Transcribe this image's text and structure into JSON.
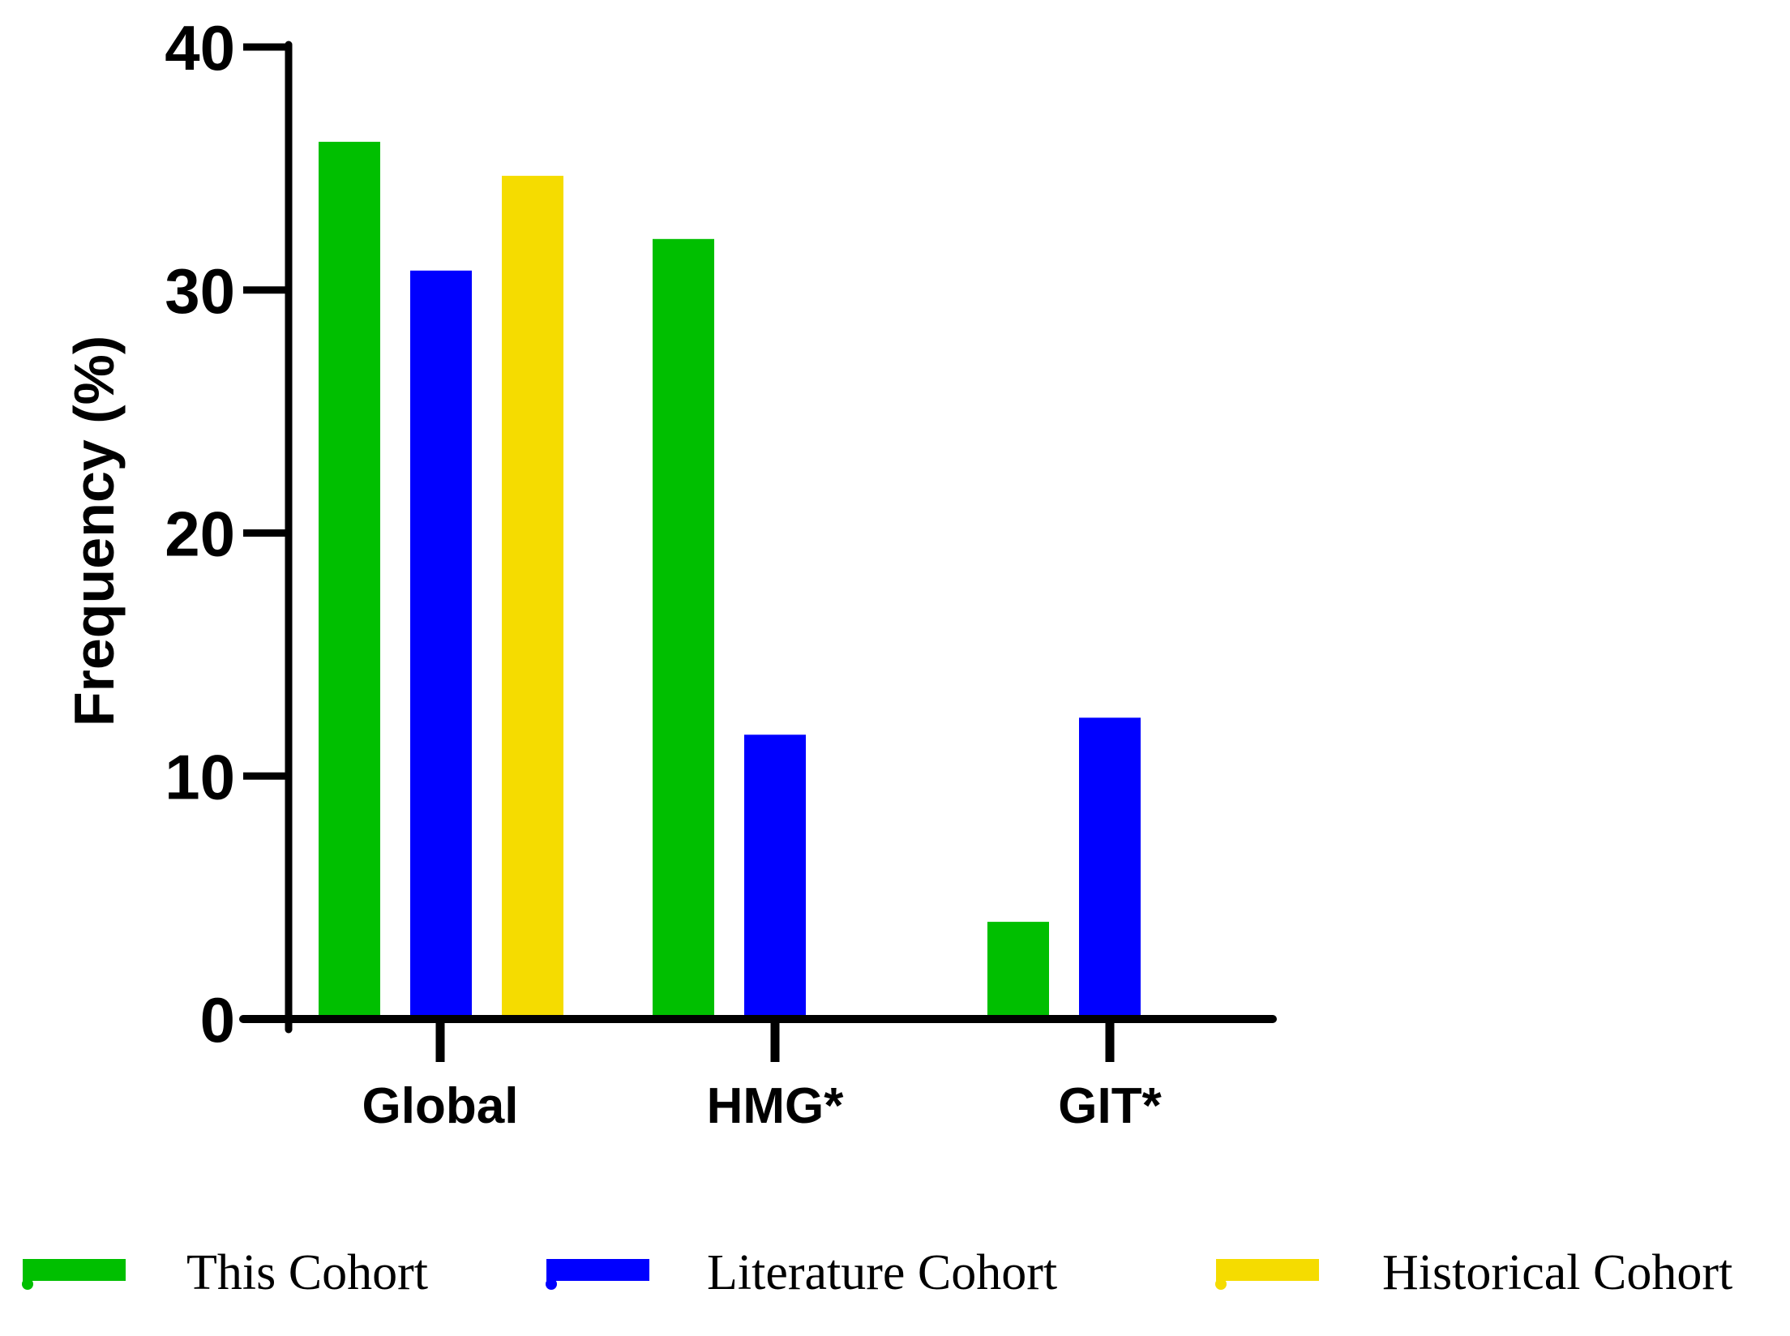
{
  "chart_data": {
    "type": "bar",
    "categories": [
      "Global",
      "HMG*",
      "GIT*"
    ],
    "ylabel": "Frequency (%)",
    "ylim": [
      0,
      40
    ],
    "yticks": [
      0,
      10,
      20,
      30,
      40
    ],
    "grid": false,
    "legend_position": "bottom",
    "series": [
      {
        "name": "This Cohort",
        "color": "#00bf00",
        "values": [
          36.1,
          32.1,
          4.0
        ]
      },
      {
        "name": "Literature Cohort",
        "color": "#0000ff",
        "values": [
          30.8,
          11.7,
          12.4
        ]
      },
      {
        "name": "Historical Cohort",
        "color": "#f5dc00",
        "values": [
          34.7,
          null,
          null
        ]
      }
    ]
  }
}
